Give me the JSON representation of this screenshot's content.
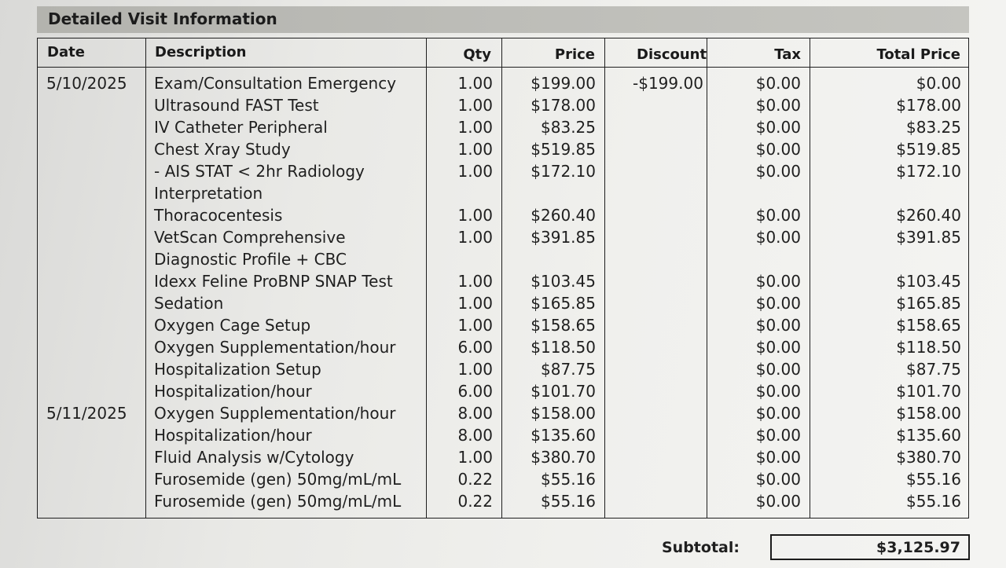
{
  "section_title": "Detailed Visit Information",
  "columns": {
    "date": "Date",
    "description": "Description",
    "qty": "Qty",
    "price": "Price",
    "discount": "Discount",
    "tax": "Tax",
    "total": "Total Price"
  },
  "rows": [
    {
      "date": "5/10/2025",
      "description": "Exam/Consultation Emergency",
      "qty": "1.00",
      "price": "$199.00",
      "discount": "-$199.00",
      "tax": "$0.00",
      "total": "$0.00"
    },
    {
      "date": "",
      "description": "Ultrasound FAST Test",
      "qty": "1.00",
      "price": "$178.00",
      "discount": "",
      "tax": "$0.00",
      "total": "$178.00"
    },
    {
      "date": "",
      "description": "IV Catheter Peripheral",
      "qty": "1.00",
      "price": "$83.25",
      "discount": "",
      "tax": "$0.00",
      "total": "$83.25"
    },
    {
      "date": "",
      "description": "Chest Xray Study",
      "qty": "1.00",
      "price": "$519.85",
      "discount": "",
      "tax": "$0.00",
      "total": "$519.85"
    },
    {
      "date": "",
      "description": "- AIS STAT < 2hr Radiology",
      "qty": "1.00",
      "price": "$172.10",
      "discount": "",
      "tax": "$0.00",
      "total": "$172.10"
    },
    {
      "date": "",
      "description": "Interpretation",
      "qty": "",
      "price": "",
      "discount": "",
      "tax": "",
      "total": ""
    },
    {
      "date": "",
      "description": "Thoracocentesis",
      "qty": "1.00",
      "price": "$260.40",
      "discount": "",
      "tax": "$0.00",
      "total": "$260.40"
    },
    {
      "date": "",
      "description": "VetScan Comprehensive",
      "qty": "1.00",
      "price": "$391.85",
      "discount": "",
      "tax": "$0.00",
      "total": "$391.85"
    },
    {
      "date": "",
      "description": "Diagnostic Profile + CBC",
      "qty": "",
      "price": "",
      "discount": "",
      "tax": "",
      "total": ""
    },
    {
      "date": "",
      "description": "Idexx Feline ProBNP SNAP Test",
      "qty": "1.00",
      "price": "$103.45",
      "discount": "",
      "tax": "$0.00",
      "total": "$103.45"
    },
    {
      "date": "",
      "description": "Sedation",
      "qty": "1.00",
      "price": "$165.85",
      "discount": "",
      "tax": "$0.00",
      "total": "$165.85"
    },
    {
      "date": "",
      "description": "Oxygen Cage Setup",
      "qty": "1.00",
      "price": "$158.65",
      "discount": "",
      "tax": "$0.00",
      "total": "$158.65"
    },
    {
      "date": "",
      "description": "Oxygen Supplementation/hour",
      "qty": "6.00",
      "price": "$118.50",
      "discount": "",
      "tax": "$0.00",
      "total": "$118.50"
    },
    {
      "date": "",
      "description": "Hospitalization Setup",
      "qty": "1.00",
      "price": "$87.75",
      "discount": "",
      "tax": "$0.00",
      "total": "$87.75"
    },
    {
      "date": "",
      "description": "Hospitalization/hour",
      "qty": "6.00",
      "price": "$101.70",
      "discount": "",
      "tax": "$0.00",
      "total": "$101.70"
    },
    {
      "date": "5/11/2025",
      "description": "Oxygen Supplementation/hour",
      "qty": "8.00",
      "price": "$158.00",
      "discount": "",
      "tax": "$0.00",
      "total": "$158.00"
    },
    {
      "date": "",
      "description": "Hospitalization/hour",
      "qty": "8.00",
      "price": "$135.60",
      "discount": "",
      "tax": "$0.00",
      "total": "$135.60"
    },
    {
      "date": "",
      "description": "Fluid Analysis w/Cytology",
      "qty": "1.00",
      "price": "$380.70",
      "discount": "",
      "tax": "$0.00",
      "total": "$380.70"
    },
    {
      "date": "",
      "description": "Furosemide (gen) 50mg/mL/mL",
      "qty": "0.22",
      "price": "$55.16",
      "discount": "",
      "tax": "$0.00",
      "total": "$55.16"
    },
    {
      "date": "",
      "description": "Furosemide (gen) 50mg/mL/mL",
      "qty": "0.22",
      "price": "$55.16",
      "discount": "",
      "tax": "$0.00",
      "total": "$55.16"
    }
  ],
  "subtotal": {
    "label": "Subtotal:",
    "value": "$3,125.97"
  }
}
